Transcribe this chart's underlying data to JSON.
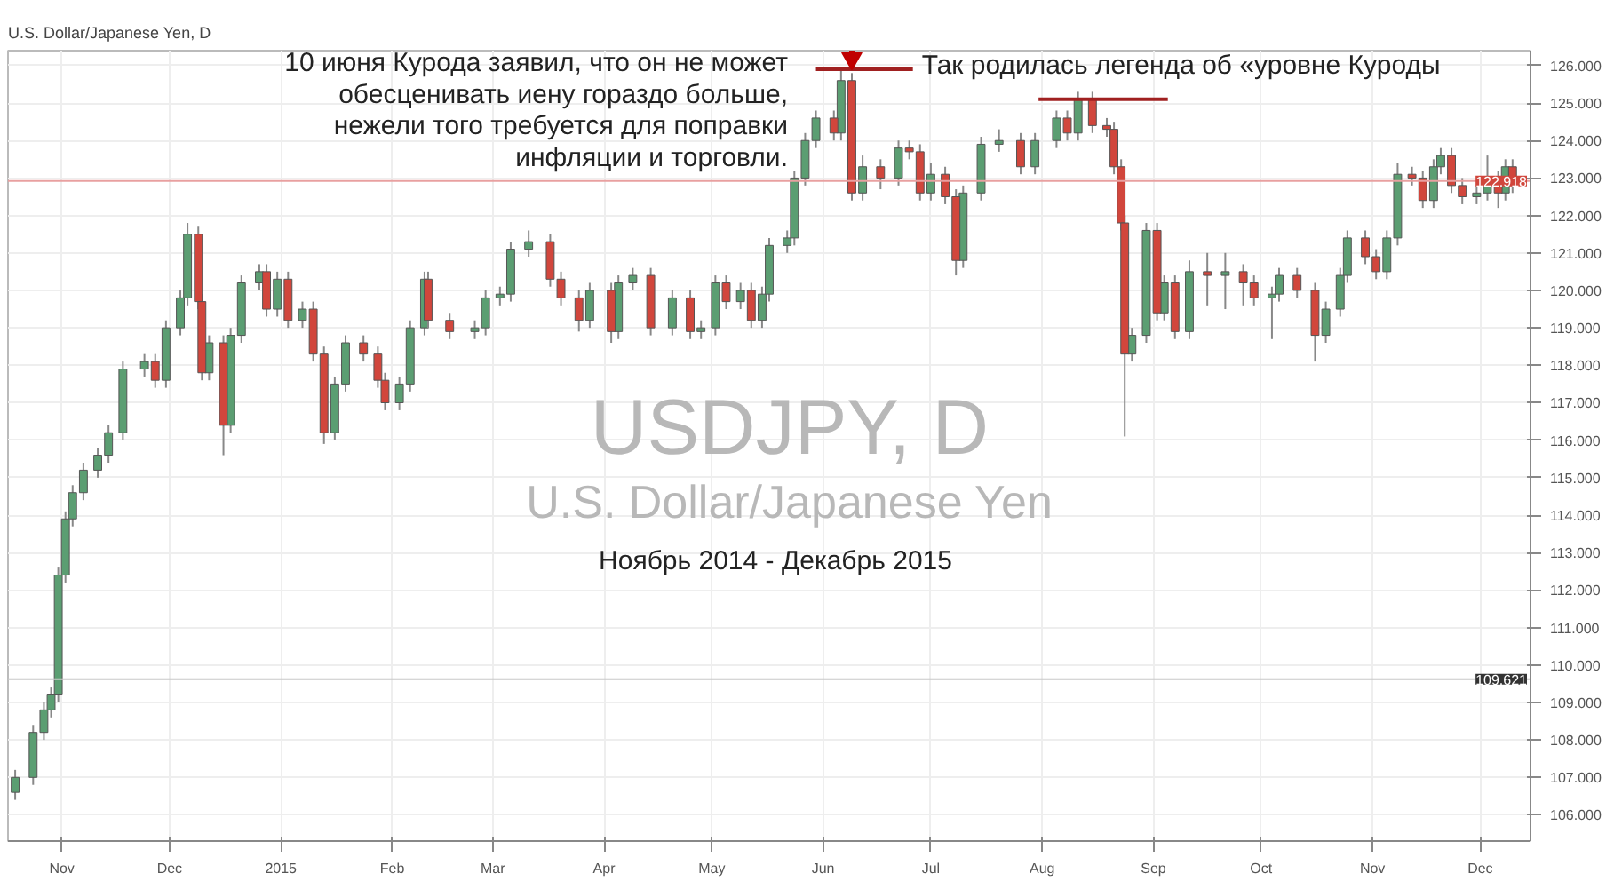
{
  "chart_data": {
    "type": "candlestick",
    "title": "U.S. Dollar/Japanese Yen, D",
    "x": [
      "2014-10-19",
      "2014-10-24",
      "2014-10-27",
      "2014-10-29",
      "2014-10-31",
      "2014-11-02",
      "2014-11-04",
      "2014-11-07",
      "2014-11-11",
      "2014-11-14",
      "2014-11-18",
      "2014-11-24",
      "2014-11-27",
      "2014-11-30",
      "2014-12-04",
      "2014-12-06",
      "2014-12-09",
      "2014-12-10",
      "2014-12-12",
      "2014-12-16",
      "2014-12-18",
      "2014-12-21",
      "2014-12-26",
      "2014-12-28",
      "2014-12-31",
      "2015-01-03",
      "2015-01-07",
      "2015-01-10",
      "2015-01-13",
      "2015-01-16",
      "2015-01-19",
      "2015-01-24",
      "2015-01-28",
      "2015-01-30",
      "2015-02-03",
      "2015-02-06",
      "2015-02-10",
      "2015-02-11",
      "2015-02-17",
      "2015-02-24",
      "2015-02-27",
      "2015-03-03",
      "2015-03-06",
      "2015-03-11",
      "2015-03-17",
      "2015-03-20",
      "2015-03-25",
      "2015-03-28",
      "2015-04-03",
      "2015-04-05",
      "2015-04-09",
      "2015-04-14",
      "2015-04-20",
      "2015-04-25",
      "2015-04-28",
      "2015-05-02",
      "2015-05-05",
      "2015-05-09",
      "2015-05-12",
      "2015-05-15",
      "2015-05-17",
      "2015-05-22",
      "2015-05-24",
      "2015-05-27",
      "2015-05-30",
      "2015-06-04",
      "2015-06-06",
      "2015-06-09",
      "2015-06-12",
      "2015-06-17",
      "2015-06-22",
      "2015-06-25",
      "2015-06-28",
      "2015-07-01",
      "2015-07-05",
      "2015-07-08",
      "2015-07-10",
      "2015-07-15",
      "2015-07-20",
      "2015-07-26",
      "2015-07-30",
      "2015-08-05",
      "2015-08-08",
      "2015-08-11",
      "2015-08-15",
      "2015-08-19",
      "2015-08-21",
      "2015-08-23",
      "2015-08-24",
      "2015-08-26",
      "2015-08-30",
      "2015-09-02",
      "2015-09-04",
      "2015-09-07",
      "2015-09-11",
      "2015-09-16",
      "2015-09-21",
      "2015-09-26",
      "2015-09-29",
      "2015-10-04",
      "2015-10-06",
      "2015-10-11",
      "2015-10-16",
      "2015-10-19",
      "2015-10-23",
      "2015-10-25",
      "2015-10-30",
      "2015-11-02",
      "2015-11-05",
      "2015-11-08",
      "2015-11-12",
      "2015-11-15",
      "2015-11-18",
      "2015-11-20",
      "2015-11-23",
      "2015-11-26",
      "2015-11-30",
      "2015-12-03",
      "2015-12-06",
      "2015-12-08",
      "2015-12-10"
    ],
    "ohlc": [
      [
        106.6,
        107.2,
        106.4,
        107.0
      ],
      [
        107.0,
        108.4,
        106.8,
        108.2
      ],
      [
        108.2,
        109.0,
        108.0,
        108.8
      ],
      [
        108.8,
        109.4,
        108.6,
        109.2
      ],
      [
        109.2,
        112.6,
        109.0,
        112.4
      ],
      [
        112.4,
        114.1,
        112.2,
        113.9
      ],
      [
        113.9,
        114.8,
        113.7,
        114.6
      ],
      [
        114.6,
        115.4,
        114.4,
        115.2
      ],
      [
        115.2,
        115.8,
        115.0,
        115.6
      ],
      [
        115.6,
        116.4,
        115.4,
        116.2
      ],
      [
        116.2,
        118.1,
        116.0,
        117.9
      ],
      [
        117.9,
        118.3,
        117.7,
        118.1
      ],
      [
        118.1,
        118.3,
        117.4,
        117.6
      ],
      [
        117.6,
        119.2,
        117.4,
        119.0
      ],
      [
        119.0,
        120.0,
        118.8,
        119.8
      ],
      [
        119.8,
        121.8,
        119.6,
        121.5
      ],
      [
        121.5,
        121.7,
        119.5,
        119.7
      ],
      [
        119.7,
        119.9,
        117.6,
        117.8
      ],
      [
        117.8,
        118.8,
        117.6,
        118.6
      ],
      [
        118.6,
        118.8,
        115.6,
        116.4
      ],
      [
        116.4,
        119.0,
        116.2,
        118.8
      ],
      [
        118.8,
        120.4,
        118.6,
        120.2
      ],
      [
        120.2,
        120.7,
        120.0,
        120.5
      ],
      [
        120.5,
        120.7,
        119.3,
        119.5
      ],
      [
        119.5,
        120.5,
        119.3,
        120.3
      ],
      [
        120.3,
        120.5,
        119.0,
        119.2
      ],
      [
        119.2,
        119.7,
        119.0,
        119.5
      ],
      [
        119.5,
        119.7,
        118.1,
        118.3
      ],
      [
        118.3,
        118.5,
        115.9,
        116.2
      ],
      [
        116.2,
        117.7,
        116.0,
        117.5
      ],
      [
        117.5,
        118.8,
        117.3,
        118.6
      ],
      [
        118.6,
        118.8,
        118.1,
        118.3
      ],
      [
        118.3,
        118.5,
        117.4,
        117.6
      ],
      [
        117.6,
        117.8,
        116.8,
        117.0
      ],
      [
        117.0,
        117.7,
        116.8,
        117.5
      ],
      [
        117.5,
        119.2,
        117.3,
        119.0
      ],
      [
        119.0,
        120.5,
        118.8,
        120.3
      ],
      [
        120.3,
        120.5,
        119.0,
        119.2
      ],
      [
        119.2,
        119.4,
        118.7,
        118.9
      ],
      [
        118.9,
        119.2,
        118.7,
        119.0
      ],
      [
        119.0,
        120.0,
        118.8,
        119.8
      ],
      [
        119.8,
        120.1,
        119.6,
        119.9
      ],
      [
        119.9,
        121.3,
        119.7,
        121.1
      ],
      [
        121.1,
        121.6,
        120.9,
        121.3
      ],
      [
        121.3,
        121.5,
        120.1,
        120.3
      ],
      [
        120.3,
        120.5,
        119.6,
        119.8
      ],
      [
        119.8,
        120.0,
        118.9,
        119.2
      ],
      [
        119.2,
        120.2,
        119.0,
        120.0
      ],
      [
        120.0,
        120.2,
        118.6,
        118.9
      ],
      [
        118.9,
        120.4,
        118.7,
        120.2
      ],
      [
        120.2,
        120.6,
        120.0,
        120.4
      ],
      [
        120.4,
        120.6,
        118.8,
        119.0
      ],
      [
        119.0,
        120.0,
        118.8,
        119.8
      ],
      [
        119.8,
        120.0,
        118.7,
        118.9
      ],
      [
        118.9,
        119.2,
        118.7,
        119.0
      ],
      [
        119.0,
        120.4,
        118.8,
        120.2
      ],
      [
        120.2,
        120.4,
        119.5,
        119.7
      ],
      [
        119.7,
        120.2,
        119.5,
        120.0
      ],
      [
        120.0,
        120.2,
        119.0,
        119.2
      ],
      [
        119.2,
        120.1,
        119.0,
        119.9
      ],
      [
        119.9,
        121.4,
        119.7,
        121.2
      ],
      [
        121.2,
        121.6,
        121.0,
        121.4
      ],
      [
        121.4,
        123.2,
        121.2,
        123.0
      ],
      [
        123.0,
        124.2,
        122.8,
        124.0
      ],
      [
        124.0,
        124.8,
        123.8,
        124.6
      ],
      [
        124.6,
        124.8,
        124.0,
        124.2
      ],
      [
        124.2,
        125.9,
        124.0,
        125.6
      ],
      [
        125.6,
        125.8,
        122.4,
        122.6
      ],
      [
        122.6,
        123.6,
        122.4,
        123.3
      ],
      [
        123.3,
        123.5,
        122.7,
        123.0
      ],
      [
        123.0,
        124.0,
        122.8,
        123.8
      ],
      [
        123.8,
        124.0,
        123.5,
        123.7
      ],
      [
        123.7,
        123.9,
        122.4,
        122.6
      ],
      [
        122.6,
        123.4,
        122.4,
        123.1
      ],
      [
        123.1,
        123.3,
        122.3,
        122.5
      ],
      [
        122.5,
        122.7,
        120.4,
        120.8
      ],
      [
        120.8,
        122.8,
        120.6,
        122.6
      ],
      [
        122.6,
        124.1,
        122.4,
        123.9
      ],
      [
        123.9,
        124.3,
        123.7,
        124.0
      ],
      [
        124.0,
        124.2,
        123.1,
        123.3
      ],
      [
        123.3,
        124.2,
        123.1,
        124.0
      ],
      [
        124.0,
        124.8,
        123.8,
        124.6
      ],
      [
        124.6,
        124.8,
        124.0,
        124.2
      ],
      [
        124.2,
        125.3,
        124.0,
        125.1
      ],
      [
        125.1,
        125.3,
        124.2,
        124.4
      ],
      [
        124.4,
        124.6,
        124.1,
        124.3
      ],
      [
        124.3,
        124.5,
        123.1,
        123.3
      ],
      [
        123.3,
        123.5,
        121.6,
        121.8
      ],
      [
        121.8,
        122.0,
        116.1,
        118.3
      ],
      [
        118.3,
        119.0,
        118.1,
        118.8
      ],
      [
        118.8,
        121.8,
        118.6,
        121.6
      ],
      [
        121.6,
        121.8,
        119.2,
        119.4
      ],
      [
        119.4,
        120.4,
        119.2,
        120.2
      ],
      [
        120.2,
        120.4,
        118.7,
        118.9
      ],
      [
        118.9,
        120.8,
        118.7,
        120.5
      ],
      [
        120.5,
        121.0,
        119.6,
        120.4
      ],
      [
        120.4,
        121.0,
        119.5,
        120.5
      ],
      [
        120.5,
        120.7,
        119.6,
        120.2
      ],
      [
        120.2,
        120.4,
        119.6,
        119.8
      ],
      [
        119.8,
        120.1,
        118.7,
        119.9
      ],
      [
        119.9,
        120.6,
        119.7,
        120.4
      ],
      [
        120.4,
        120.6,
        119.8,
        120.0
      ],
      [
        120.0,
        120.2,
        118.1,
        118.8
      ],
      [
        118.8,
        119.7,
        118.6,
        119.5
      ],
      [
        119.5,
        120.6,
        119.3,
        120.4
      ],
      [
        120.4,
        121.6,
        120.2,
        121.4
      ],
      [
        121.4,
        121.6,
        120.7,
        120.9
      ],
      [
        120.9,
        121.1,
        120.3,
        120.5
      ],
      [
        120.5,
        121.6,
        120.3,
        121.4
      ],
      [
        121.4,
        123.4,
        121.2,
        123.1
      ],
      [
        123.1,
        123.3,
        122.8,
        123.0
      ],
      [
        123.0,
        123.2,
        122.2,
        122.4
      ],
      [
        122.4,
        123.5,
        122.2,
        123.3
      ],
      [
        123.3,
        123.8,
        123.1,
        123.6
      ],
      [
        123.6,
        123.8,
        122.6,
        122.8
      ],
      [
        122.8,
        123.0,
        122.3,
        122.5
      ],
      [
        122.5,
        122.8,
        122.3,
        122.6
      ],
      [
        122.6,
        123.6,
        122.4,
        123.0
      ],
      [
        123.0,
        123.2,
        122.2,
        122.6
      ],
      [
        122.6,
        123.5,
        122.4,
        123.3
      ],
      [
        123.3,
        123.5,
        122.6,
        122.8
      ]
    ],
    "xlim": [
      "2014-10-17",
      "2015-12-15"
    ],
    "xticks": [
      {
        "value": "2014-11-01",
        "label": "Nov"
      },
      {
        "value": "2014-12-01",
        "label": "Dec"
      },
      {
        "value": "2015-01-01",
        "label": "2015"
      },
      {
        "value": "2015-02-01",
        "label": "Feb"
      },
      {
        "value": "2015-03-01",
        "label": "Mar"
      },
      {
        "value": "2015-04-01",
        "label": "Apr"
      },
      {
        "value": "2015-05-01",
        "label": "May"
      },
      {
        "value": "2015-06-01",
        "label": "Jun"
      },
      {
        "value": "2015-07-01",
        "label": "Jul"
      },
      {
        "value": "2015-08-01",
        "label": "Aug"
      },
      {
        "value": "2015-09-01",
        "label": "Sep"
      },
      {
        "value": "2015-10-01",
        "label": "Oct"
      },
      {
        "value": "2015-11-01",
        "label": "Nov"
      },
      {
        "value": "2015-12-01",
        "label": "Dec"
      }
    ],
    "ylim": [
      105.3,
      126.4
    ],
    "yticks": [
      {
        "value": 106,
        "label": "106.000"
      },
      {
        "value": 107,
        "label": "107.000"
      },
      {
        "value": 108,
        "label": "108.000"
      },
      {
        "value": 109,
        "label": "109.000"
      },
      {
        "value": 110,
        "label": "110.000"
      },
      {
        "value": 111,
        "label": "111.000"
      },
      {
        "value": 112,
        "label": "112.000"
      },
      {
        "value": 113,
        "label": "113.000"
      },
      {
        "value": 114,
        "label": "114.000"
      },
      {
        "value": 115,
        "label": "115.000"
      },
      {
        "value": 116,
        "label": "116.000"
      },
      {
        "value": 117,
        "label": "117.000"
      },
      {
        "value": 118,
        "label": "118.000"
      },
      {
        "value": 119,
        "label": "119.000"
      },
      {
        "value": 120,
        "label": "120.000"
      },
      {
        "value": 121,
        "label": "121.000"
      },
      {
        "value": 122,
        "label": "122.000"
      },
      {
        "value": 123,
        "label": "123.000"
      },
      {
        "value": 124,
        "label": "124.000"
      },
      {
        "value": 125,
        "label": "125.000"
      },
      {
        "value": 126,
        "label": "126.000"
      }
    ],
    "grid": true,
    "ref_lines": [
      {
        "axis": "y",
        "value": 122.918,
        "label": "122.918",
        "color": "#e8a0a0"
      },
      {
        "axis": "y",
        "value": 109.621,
        "label": "109.621",
        "color": "#c8c8c8"
      }
    ],
    "annotations": [
      {
        "text": "10 июня Курода заявил, что он не может\nобесценивать иену гораздо больше,\nнежели того требуется для поправки\nинфляции и торговли.",
        "x": "2015-06-09",
        "y": 125.9
      },
      {
        "text": "Так родилась легенда об «уровне Куроды",
        "x": "2015-08-11",
        "y": 125.3
      },
      "Ноябрь 2014 - Декабрь 2015",
      "USDJPY, D",
      "U.S. Dollar/Japanese Yen"
    ]
  }
}
